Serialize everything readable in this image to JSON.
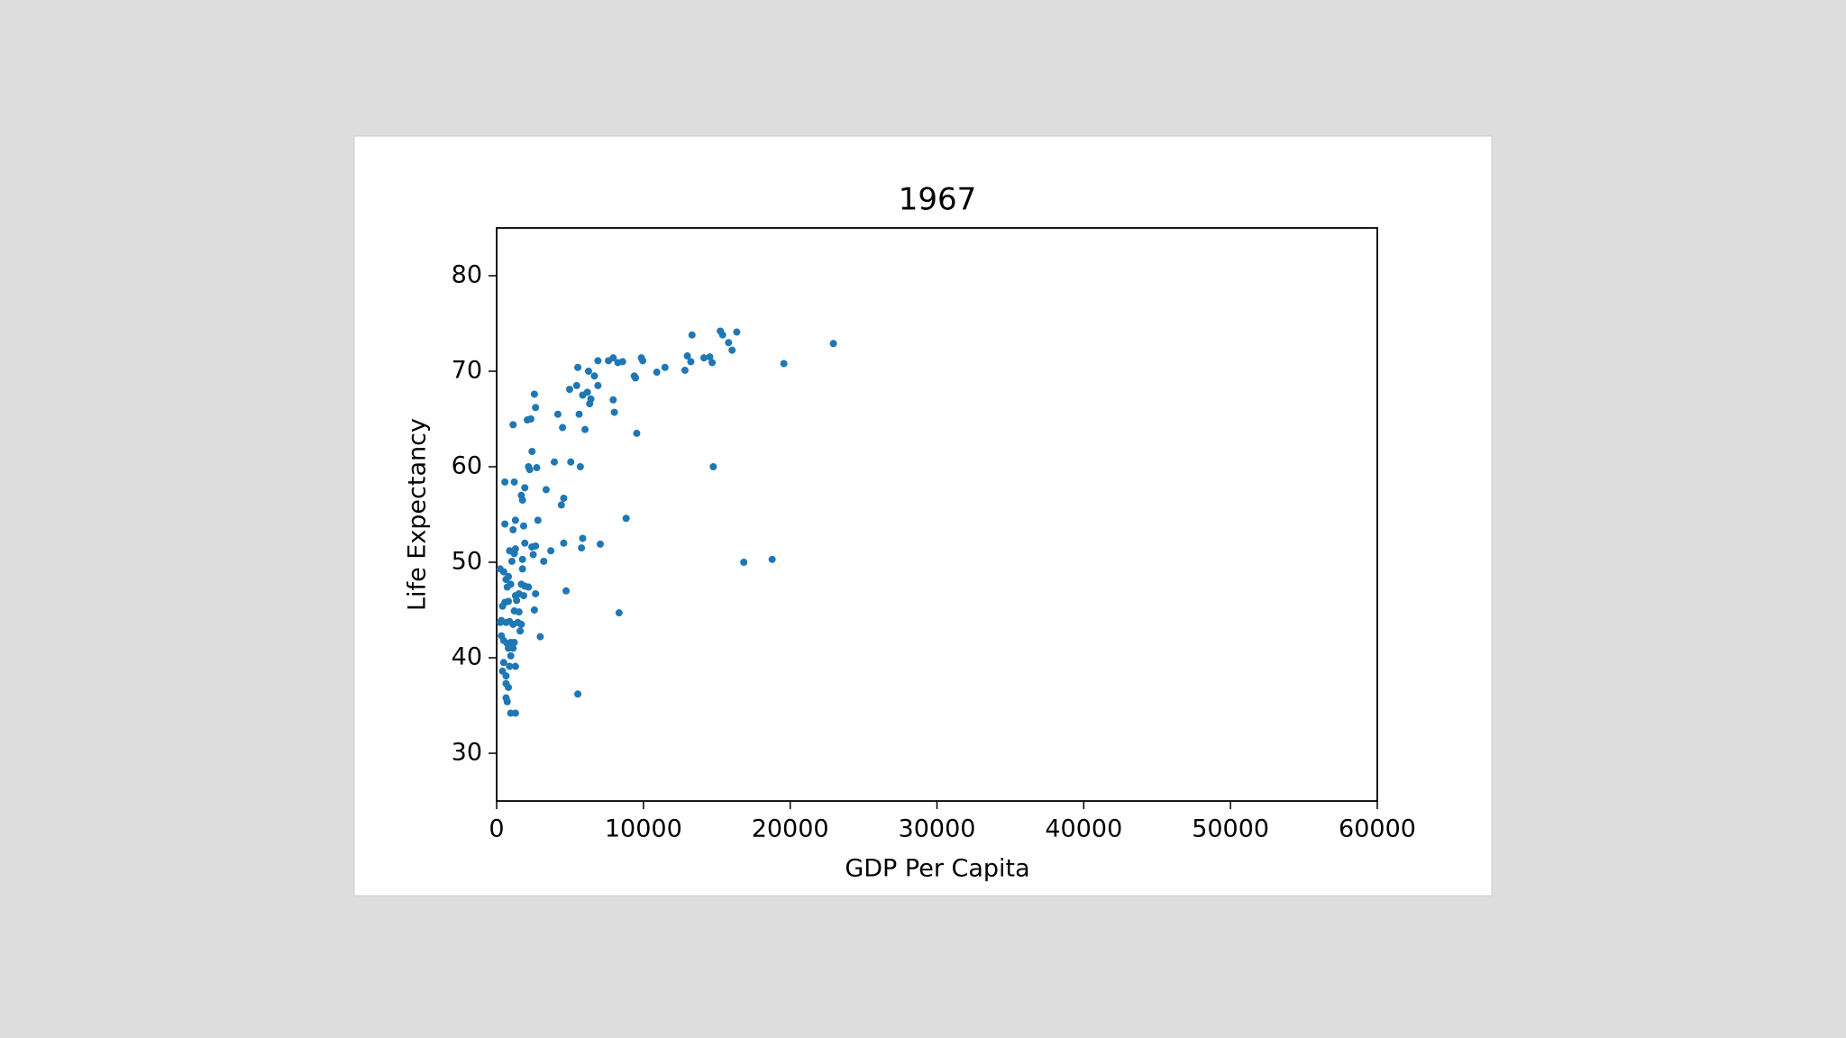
{
  "chart_data": {
    "type": "scatter",
    "title": "1967",
    "x_label": "GDP Per Capita",
    "y_label": "Life Expectancy",
    "color": "#1f77b4",
    "x": [
      22940,
      19570,
      18770,
      16840,
      14760,
      9545,
      8820,
      8340,
      5530,
      7060,
      5860,
      5780,
      4730,
      4570,
      3930,
      5050,
      5700,
      3370,
      3210,
      3690,
      2970,
      2810,
      2650,
      2650,
      2570,
      2730,
      2410,
      2250,
      2090,
      2330,
      1120,
      4490,
      4170,
      4410,
      4570,
      4970,
      5450,
      5530,
      5620,
      5860,
      6020,
      6180,
      6420,
      6260,
      6660,
      6340,
      6900,
      6900,
      7620,
      7940,
      8260,
      8580,
      7940,
      8020,
      9380,
      9460,
      9860,
      9950,
      10910,
      11470,
      12830,
      12990,
      13230,
      13310,
      14120,
      14520,
      14680,
      15240,
      15400,
      15800,
      16040,
      16360,
      240,
      480,
      640,
      800,
      960,
      720,
      1040,
      1200,
      880,
      1280,
      1120,
      1280,
      560,
      560,
      1200,
      1680,
      1760,
      1920,
      1760,
      1760,
      1920,
      1840,
      2400,
      2490,
      2170,
      1680,
      1920,
      2170,
      1520,
      1280,
      1840,
      1360,
      2570,
      2650,
      560,
      800,
      400,
      1200,
      1520,
      320,
      640,
      880,
      240,
      1120,
      1440,
      1680,
      1600,
      320,
      480,
      720,
      960,
      1200,
      800,
      1120,
      960,
      880,
      1280,
      480,
      400,
      640,
      640,
      800,
      640,
      720,
      960,
      1280
    ],
    "values": [
      72.9,
      70.8,
      50.3,
      50.0,
      60.0,
      63.5,
      54.6,
      44.7,
      36.2,
      51.9,
      52.5,
      51.5,
      47.0,
      52.0,
      60.5,
      60.5,
      60.0,
      57.6,
      50.1,
      51.2,
      42.2,
      54.4,
      51.7,
      66.2,
      67.6,
      59.9,
      61.6,
      59.7,
      64.9,
      65.0,
      64.4,
      64.1,
      65.5,
      56.0,
      56.7,
      68.1,
      68.5,
      70.4,
      65.5,
      67.5,
      63.9,
      67.8,
      67.1,
      70.0,
      69.5,
      66.6,
      68.5,
      71.1,
      71.1,
      71.4,
      70.9,
      71.0,
      67.0,
      65.7,
      69.5,
      69.3,
      71.4,
      71.1,
      69.9,
      70.4,
      70.1,
      71.6,
      71.0,
      73.8,
      71.4,
      71.5,
      70.9,
      74.2,
      73.8,
      73.0,
      72.2,
      74.1,
      49.3,
      49.0,
      48.2,
      48.5,
      47.7,
      47.4,
      50.1,
      50.9,
      51.2,
      51.4,
      53.4,
      54.4,
      54.0,
      58.4,
      58.4,
      57.0,
      56.5,
      57.8,
      50.3,
      49.3,
      52.0,
      53.8,
      51.6,
      50.8,
      60.0,
      47.7,
      47.5,
      47.4,
      46.7,
      46.5,
      46.5,
      46.0,
      45.0,
      46.7,
      45.8,
      45.9,
      45.4,
      44.9,
      44.8,
      43.9,
      43.7,
      43.8,
      43.7,
      43.5,
      43.7,
      43.5,
      42.8,
      42.3,
      41.8,
      41.5,
      41.6,
      41.6,
      41.0,
      41.0,
      40.2,
      39.1,
      39.1,
      39.5,
      38.6,
      38.1,
      37.3,
      36.9,
      35.8,
      35.4,
      34.2,
      34.2
    ],
    "xlim": [
      0,
      60000
    ],
    "xticks": [
      0,
      10000,
      20000,
      30000,
      40000,
      50000,
      60000
    ],
    "ylim": [
      25,
      85
    ],
    "yticks": [
      30,
      40,
      50,
      60,
      70,
      80
    ]
  }
}
